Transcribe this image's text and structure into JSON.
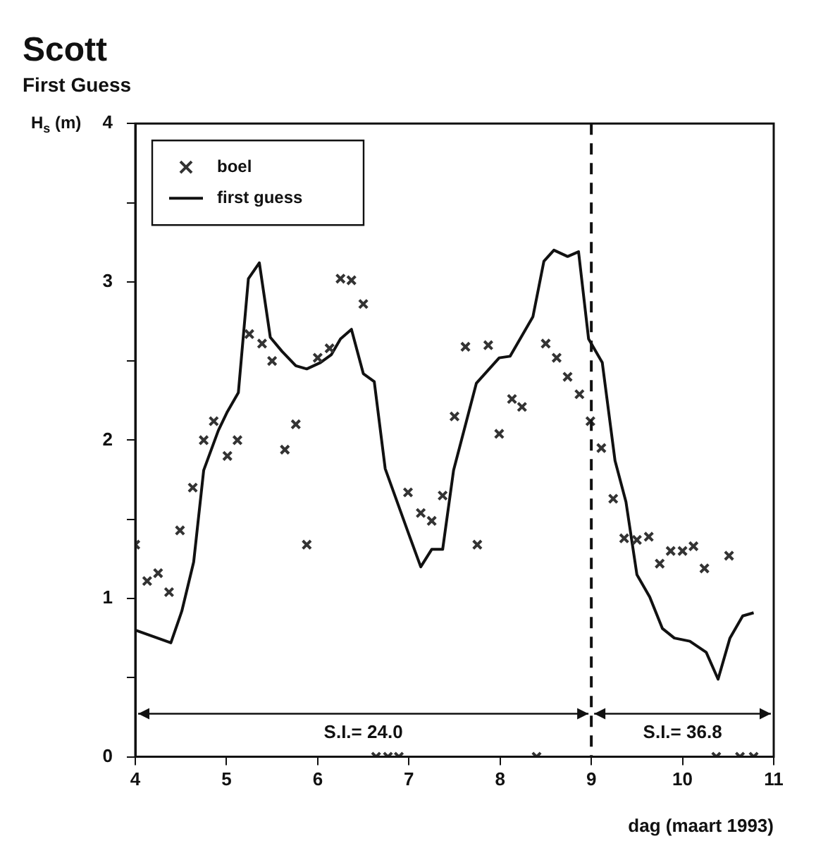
{
  "chart_data": {
    "type": "scatter",
    "title": "Scott",
    "subtitle": "First Guess",
    "ylabel": "H$_{s}$ (m)",
    "xlabel": "dag (maart 1993)",
    "xlim": [
      4,
      11
    ],
    "xticks": [
      4,
      5,
      6,
      7,
      8,
      9,
      10,
      11
    ],
    "ylim": [
      0,
      4
    ],
    "yticks": [
      0,
      {
        "value": 0.5,
        "label": null
      },
      1,
      {
        "value": 1.5,
        "label": null
      },
      2,
      {
        "value": 2.5,
        "label": null
      },
      3,
      {
        "value": 3.5,
        "label": null
      },
      4
    ],
    "grid": false,
    "legend": "top left",
    "series": [
      {
        "name": "boel",
        "type": "scatter",
        "marker": "cross",
        "color": "#333333",
        "x": [
          4.0,
          4.13,
          4.25,
          4.37,
          4.49,
          4.63,
          4.75,
          4.86,
          5.01,
          5.12,
          5.25,
          5.39,
          5.5,
          5.64,
          5.76,
          5.88,
          6.0,
          6.13,
          6.25,
          6.37,
          6.5,
          6.64,
          6.77,
          6.89,
          6.99,
          7.13,
          7.25,
          7.37,
          7.5,
          7.62,
          7.75,
          7.87,
          7.99,
          8.13,
          8.24,
          8.4,
          8.5,
          8.62,
          8.74,
          8.87,
          8.99,
          9.11,
          9.24,
          9.36,
          9.5,
          9.63,
          9.75,
          9.87,
          10.0,
          10.12,
          10.24,
          10.37,
          10.51,
          10.63,
          10.78
        ],
        "values": [
          1.34,
          1.11,
          1.16,
          1.04,
          1.43,
          1.7,
          2.0,
          2.12,
          1.9,
          2.0,
          2.67,
          2.61,
          2.5,
          1.94,
          2.1,
          1.34,
          2.52,
          2.58,
          3.02,
          3.01,
          2.86,
          0,
          0,
          0,
          1.67,
          1.54,
          1.49,
          1.65,
          2.15,
          2.59,
          1.34,
          2.6,
          2.04,
          2.26,
          2.21,
          0,
          2.61,
          2.52,
          2.4,
          2.29,
          2.12,
          1.95,
          1.63,
          1.38,
          1.37,
          1.39,
          1.22,
          1.3,
          1.3,
          1.33,
          1.19,
          0,
          1.27,
          0,
          0
        ]
      },
      {
        "name": "first guess",
        "type": "line",
        "marker": "none",
        "line_style": "solid",
        "color": "#111111",
        "x": [
          4.0,
          4.39,
          4.51,
          4.64,
          4.75,
          4.91,
          5.01,
          5.13,
          5.24,
          5.36,
          5.48,
          5.61,
          5.76,
          5.88,
          6.03,
          6.15,
          6.25,
          6.37,
          6.5,
          6.62,
          6.74,
          6.99,
          7.13,
          7.25,
          7.37,
          7.49,
          7.74,
          7.99,
          8.11,
          8.36,
          8.48,
          8.59,
          8.74,
          8.86,
          8.97,
          9.12,
          9.26,
          9.38,
          9.5,
          9.64,
          9.78,
          9.91,
          10.08,
          10.26,
          10.39,
          10.52,
          10.66,
          10.78
        ],
        "values": [
          0.8,
          0.72,
          0.92,
          1.23,
          1.81,
          2.06,
          2.18,
          2.3,
          3.02,
          3.12,
          2.65,
          2.56,
          2.47,
          2.45,
          2.49,
          2.54,
          2.64,
          2.7,
          2.42,
          2.37,
          1.82,
          1.42,
          1.2,
          1.31,
          1.31,
          1.81,
          2.36,
          2.52,
          2.53,
          2.78,
          3.13,
          3.2,
          3.16,
          3.19,
          2.64,
          2.49,
          1.87,
          1.61,
          1.15,
          1.01,
          0.81,
          0.75,
          0.73,
          0.66,
          0.49,
          0.75,
          0.89,
          0.91
        ]
      }
    ],
    "ref_lines": [
      {
        "axis": "x",
        "value": 9,
        "line_style": "dashed"
      }
    ],
    "annotations": [
      "S.I.= 24.0",
      "S.I.= 36.8"
    ]
  }
}
